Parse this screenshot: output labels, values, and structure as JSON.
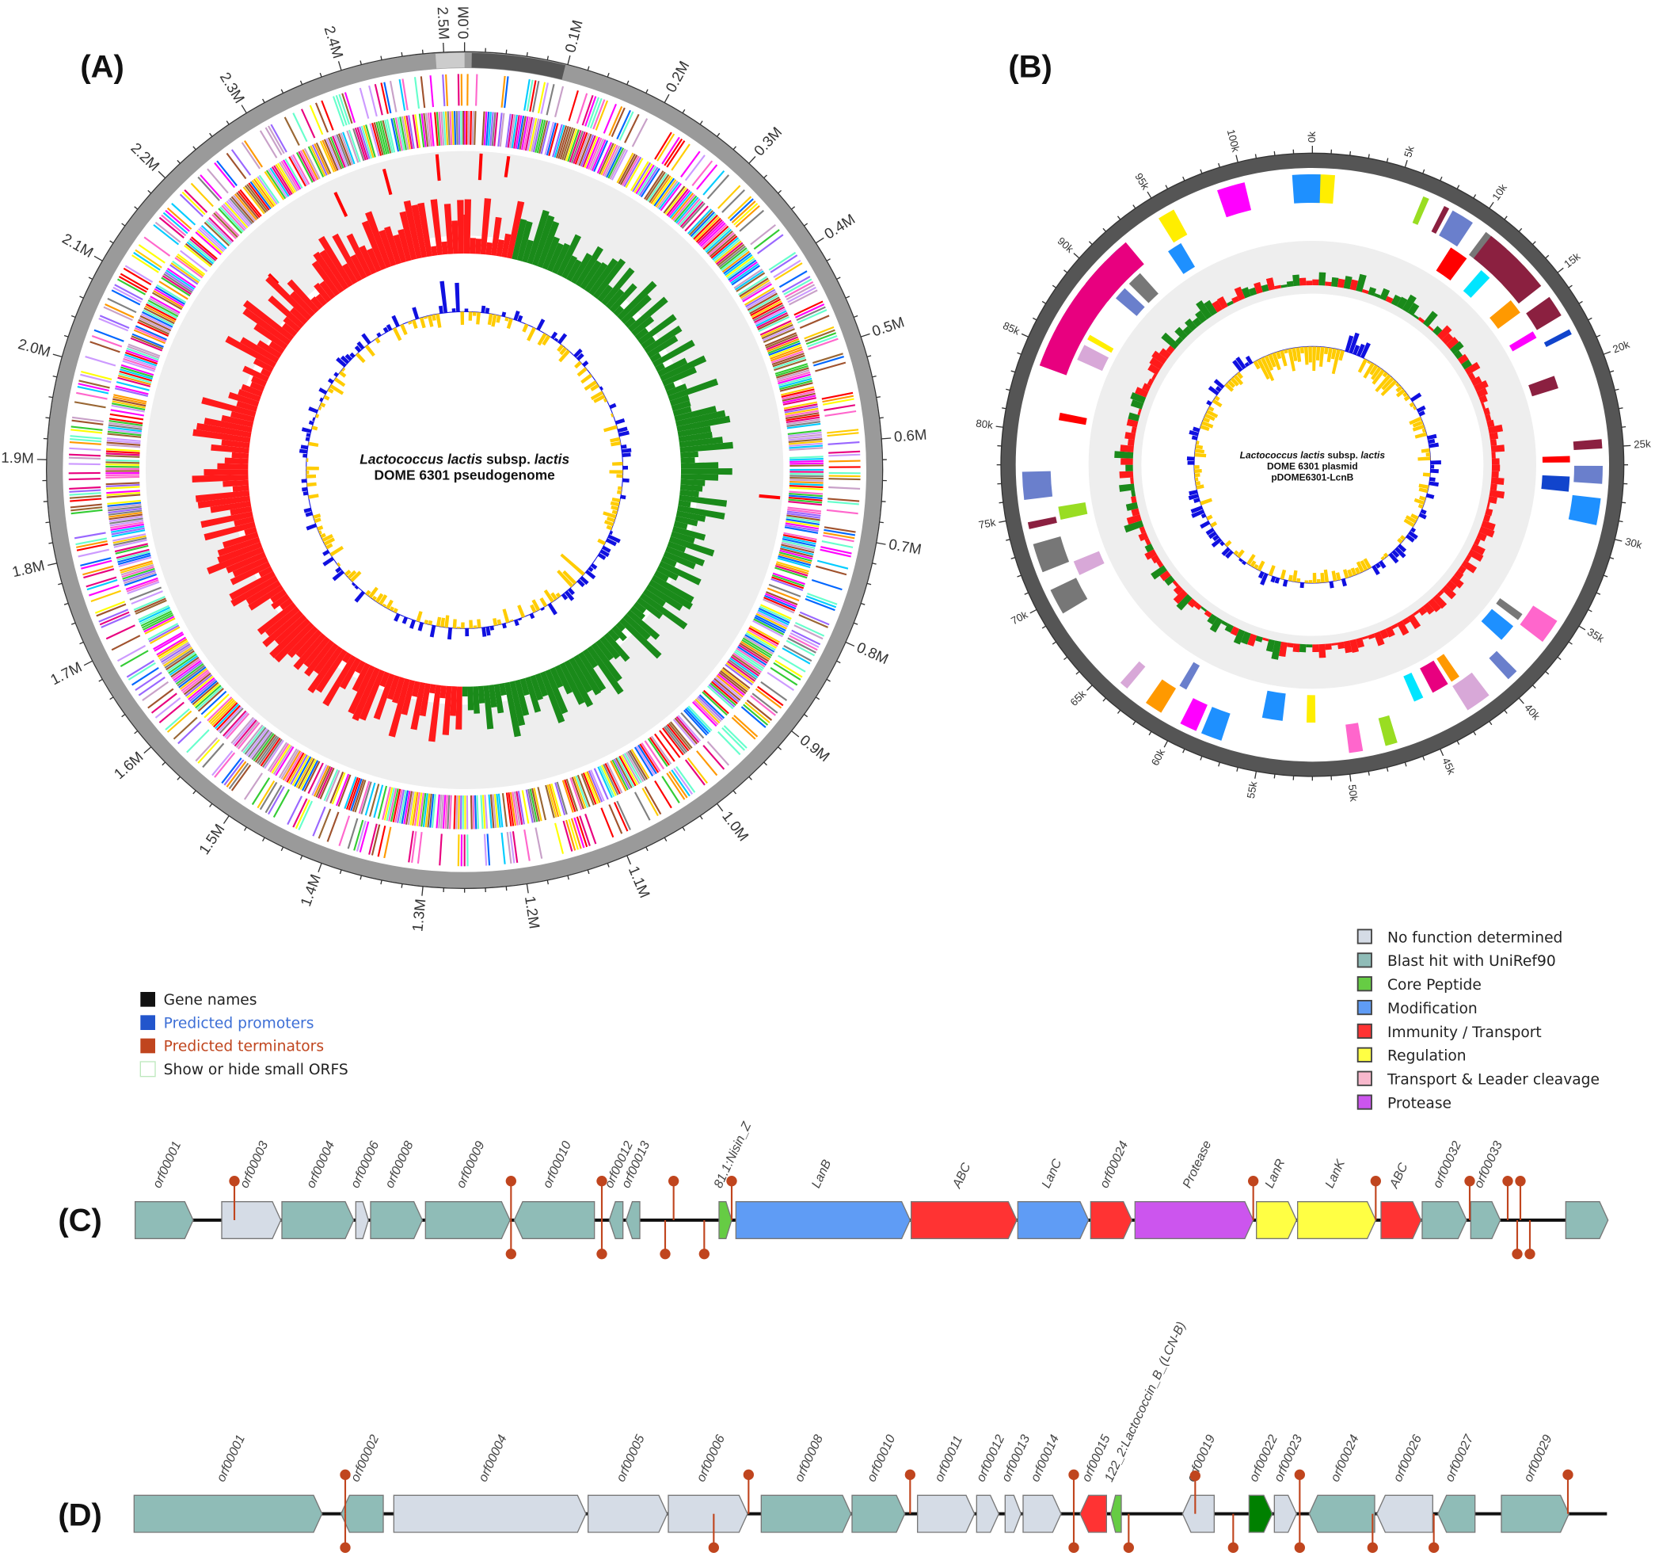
{
  "panel_labels": {
    "a": "(A)",
    "b": "(B)",
    "c": "(C)",
    "d": "(D)"
  },
  "genome_map": {
    "title_species": "Lactococcus lactis",
    "title_subsp": " subsp. ",
    "title_subspecies": "lactis",
    "title_line2": "DOME 6301 pseudogenome",
    "genome_length_mb": 2.52,
    "tick_labels": [
      "0.0M",
      "0.1M",
      "0.2M",
      "0.3M",
      "0.4M",
      "0.5M",
      "0.6M",
      "0.7M",
      "0.8M",
      "0.9M",
      "1.0M",
      "1.1M",
      "1.2M",
      "1.3M",
      "1.4M",
      "1.5M",
      "1.6M",
      "1.7M",
      "1.8M",
      "1.9M",
      "2.0M",
      "2.1M",
      "2.2M",
      "2.3M",
      "2.4M",
      "2.5M"
    ],
    "colors": {
      "ring": "#9a9a9a",
      "gc_skew_pos": "#1a8a1a",
      "gc_skew_neg": "#ff1a1a",
      "gc_content_pos": "#1010e0",
      "gc_content_neg": "#ffcc00",
      "band": "#eeeeee"
    }
  },
  "plasmid_map": {
    "title_species": "Lactococcus lactis",
    "title_subsp": " subsp. ",
    "title_subspecies": "lactis",
    "title_line2": "DOME 6301 plasmid",
    "title_line3": "pDOME6301-LcnB",
    "plasmid_length_kb": 104,
    "tick_labels": [
      "0k",
      "5k",
      "10k",
      "15k",
      "20k",
      "25k",
      "30k",
      "35k",
      "40k",
      "45k",
      "50k",
      "55k",
      "60k",
      "65k",
      "70k",
      "75k",
      "80k",
      "85k",
      "90k",
      "95k",
      "100k"
    ],
    "colors": {
      "ring": "#555555"
    }
  },
  "legend_tracks": [
    {
      "label": "Gene names",
      "color": "#111111",
      "text_color": "#222222"
    },
    {
      "label": "Predicted promoters",
      "color": "#2255cc",
      "text_color": "#3d6fd6"
    },
    {
      "label": "Predicted terminators",
      "color": "#c0451e",
      "text_color": "#c0451e"
    },
    {
      "label": "Show or hide small ORFS",
      "color": "#ffffff",
      "text_color": "#222222"
    }
  ],
  "legend_categories": [
    {
      "key": "nofunc",
      "label": "No function determined",
      "color": "#d5dce6"
    },
    {
      "key": "blast",
      "label": "Blast hit with UniRef90",
      "color": "#8fbcb7"
    },
    {
      "key": "core",
      "label": "Core Peptide",
      "color": "#66cc44"
    },
    {
      "key": "mod",
      "label": "Modification",
      "color": "#5f9cf5"
    },
    {
      "key": "immun",
      "label": "Immunity / Transport",
      "color": "#ff3333"
    },
    {
      "key": "reg",
      "label": "Regulation",
      "color": "#ffff44"
    },
    {
      "key": "leader",
      "label": "Transport & Leader cleavage",
      "color": "#f7b8cc"
    },
    {
      "key": "prot",
      "label": "Protease",
      "color": "#cc55ee"
    }
  ],
  "extra_colors": {
    "darkcore": "#008000",
    "terminator": "#c0451e"
  },
  "cluster_c": {
    "genes": [
      {
        "label": "orf00001",
        "category": "blast",
        "strand": "+"
      },
      {
        "label": "orf00003",
        "category": "nofunc",
        "strand": "+"
      },
      {
        "label": "orf00004",
        "category": "blast",
        "strand": "+"
      },
      {
        "label": "orf00006",
        "category": "nofunc",
        "strand": "+"
      },
      {
        "label": "orf00008",
        "category": "blast",
        "strand": "+"
      },
      {
        "label": "orf00009",
        "category": "blast",
        "strand": "+"
      },
      {
        "label": "orf00010",
        "category": "blast",
        "strand": "-"
      },
      {
        "label": "orf00012",
        "category": "blast",
        "strand": "-"
      },
      {
        "label": "orf00013",
        "category": "blast",
        "strand": "-"
      },
      {
        "label": "81.1:Nisin_Z",
        "category": "core",
        "strand": "+"
      },
      {
        "label": "LanB",
        "category": "mod",
        "strand": "+"
      },
      {
        "label": "ABC",
        "category": "immun",
        "strand": "+"
      },
      {
        "label": "LanC",
        "category": "mod",
        "strand": "+"
      },
      {
        "label": "orf00024",
        "category": "immun",
        "strand": "+"
      },
      {
        "label": "Protease",
        "category": "prot",
        "strand": "+"
      },
      {
        "label": "LanR",
        "category": "reg",
        "strand": "+"
      },
      {
        "label": "LanK",
        "category": "reg",
        "strand": "+"
      },
      {
        "label": "ABC",
        "category": "immun",
        "strand": "+"
      },
      {
        "label": "orf00032",
        "category": "blast",
        "strand": "+"
      },
      {
        "label": "orf00033",
        "category": "blast",
        "strand": "+"
      },
      {
        "label": "",
        "category": "blast",
        "strand": "+"
      }
    ]
  },
  "cluster_d": {
    "genes": [
      {
        "label": "orf00001",
        "category": "blast",
        "strand": "+"
      },
      {
        "label": "orf00002",
        "category": "blast",
        "strand": "-"
      },
      {
        "label": "orf00004",
        "category": "nofunc",
        "strand": "+"
      },
      {
        "label": "orf00005",
        "category": "nofunc",
        "strand": "+"
      },
      {
        "label": "orf00006",
        "category": "nofunc",
        "strand": "+"
      },
      {
        "label": "orf00008",
        "category": "blast",
        "strand": "+"
      },
      {
        "label": "orf00010",
        "category": "blast",
        "strand": "+"
      },
      {
        "label": "orf00011",
        "category": "nofunc",
        "strand": "+"
      },
      {
        "label": "orf00012",
        "category": "nofunc",
        "strand": "+"
      },
      {
        "label": "orf00013",
        "category": "nofunc",
        "strand": "+"
      },
      {
        "label": "orf00014",
        "category": "nofunc",
        "strand": "+"
      },
      {
        "label": "orf00015",
        "category": "immun",
        "strand": "-"
      },
      {
        "label": "122_2:Lactococcin_B_(LCN-B)",
        "category": "core",
        "strand": "-"
      },
      {
        "label": "orf00019",
        "category": "nofunc",
        "strand": "-"
      },
      {
        "label": "orf00022",
        "category": "darkcore",
        "strand": "+"
      },
      {
        "label": "orf00023",
        "category": "nofunc",
        "strand": "+"
      },
      {
        "label": "orf00024",
        "category": "blast",
        "strand": "-"
      },
      {
        "label": "orf00026",
        "category": "nofunc",
        "strand": "-"
      },
      {
        "label": "orf00027",
        "category": "blast",
        "strand": "-"
      },
      {
        "label": "orf00029",
        "category": "blast",
        "strand": "+"
      }
    ]
  }
}
